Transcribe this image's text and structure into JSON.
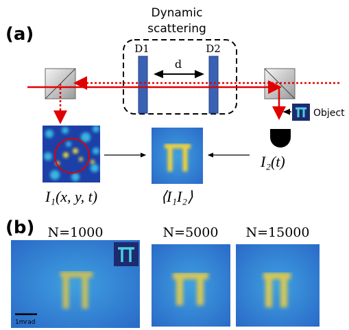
{
  "panel_a": {
    "label": "(a)",
    "scattering_title": [
      "Dynamic",
      "scattering"
    ],
    "d1": "D1",
    "d2": "D2",
    "distance": "d",
    "object": "Object",
    "detector_signal": "I₂(t)",
    "camera_signal": "I₁(x, y, t)",
    "correlation": "⟨I₁I₂⟩"
  },
  "panel_b": {
    "label": "(b)",
    "images": [
      {
        "title": "N=1000"
      },
      {
        "title": "N=5000"
      },
      {
        "title": "N=15000"
      }
    ],
    "scale_bar": "1mrad"
  }
}
